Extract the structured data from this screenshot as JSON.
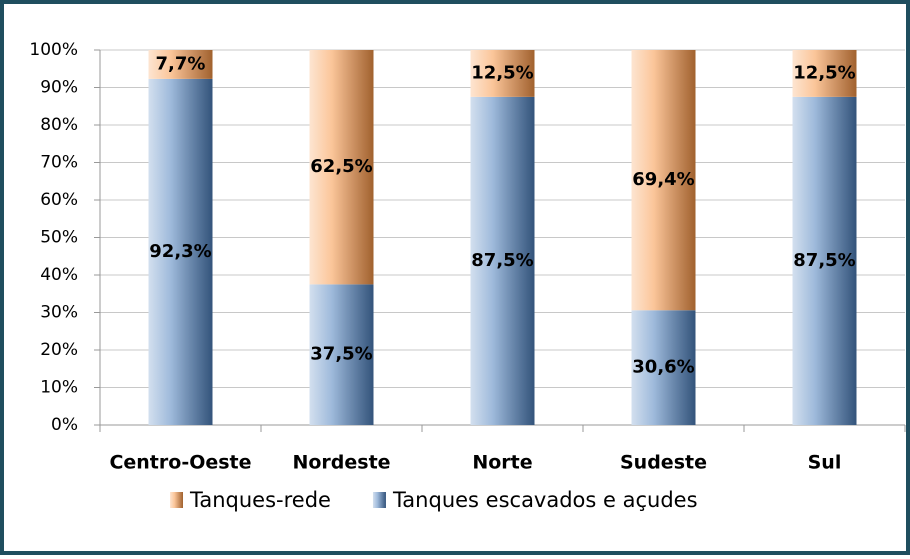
{
  "chart_data": {
    "type": "stacked_bar",
    "categories": [
      "Centro-Oeste",
      "Nordeste",
      "Norte",
      "Sudeste",
      "Sul"
    ],
    "series": [
      {
        "name": "Tanques escavados e açudes",
        "color": "#4f81bd",
        "values": [
          92.3,
          37.5,
          87.5,
          30.6,
          87.5
        ],
        "value_labels": [
          "92,3%",
          "37,5%",
          "87,5%",
          "30,6%",
          "87,5%"
        ]
      },
      {
        "name": "Tanques-rede",
        "color": "#f79646",
        "values": [
          7.7,
          62.5,
          12.5,
          69.4,
          12.5
        ],
        "value_labels": [
          "7,7%",
          "62,5%",
          "12,5%",
          "69,4%",
          "12,5%"
        ]
      }
    ],
    "ylim": [
      0,
      100
    ],
    "yticks": [
      {
        "value": 0,
        "label": "0%"
      },
      {
        "value": 10,
        "label": "10%"
      },
      {
        "value": 20,
        "label": "20%"
      },
      {
        "value": 30,
        "label": "30%"
      },
      {
        "value": 40,
        "label": "40%"
      },
      {
        "value": 50,
        "label": "50%"
      },
      {
        "value": 60,
        "label": "60%"
      },
      {
        "value": 70,
        "label": "70%"
      },
      {
        "value": 80,
        "label": "80%"
      },
      {
        "value": 90,
        "label": "90%"
      },
      {
        "value": 100,
        "label": "100%"
      }
    ],
    "grid": true
  }
}
